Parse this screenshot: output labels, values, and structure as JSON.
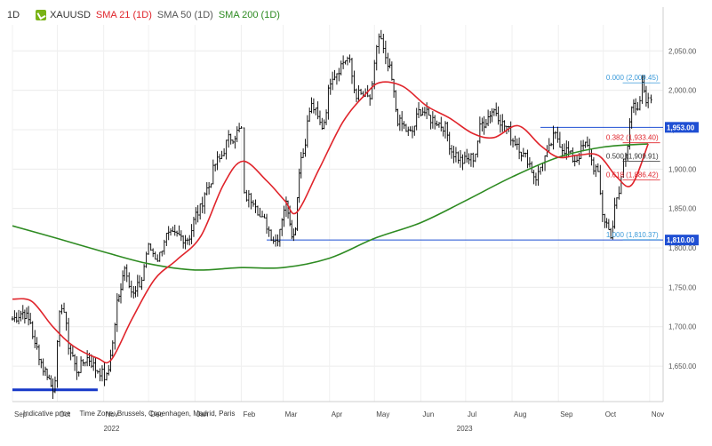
{
  "legend": {
    "timeframe": "1D",
    "symbol": "XAUUSD",
    "colors": {
      "symbol_badge": "#7ab317"
    },
    "indicators": [
      {
        "label": "SMA 21 (1D)",
        "color": "#e0242b"
      },
      {
        "label": "SMA 50 (1D)",
        "color": "#555555"
      },
      {
        "label": "SMA 200 (1D)",
        "color": "#2e8b22"
      }
    ]
  },
  "footer": {
    "indicative": "Indicative price",
    "timezone": "Time Zone: Brussels, Copenhagen, Madrid, Paris"
  },
  "chart_data": {
    "type": "line",
    "title": "",
    "xlabel": "",
    "ylabel": "",
    "x_range": [
      "2022-09-01",
      "2023-11-10"
    ],
    "ylim": [
      1605,
      2083
    ],
    "grid": true,
    "yticks": [
      "2,050.00",
      "2,000.00",
      "1,950.00",
      "1,900.00",
      "1,850.00",
      "1,800.00",
      "1,750.00",
      "1,700.00",
      "1,650.00"
    ],
    "ytick_values": [
      2050,
      2000,
      1950,
      1900,
      1850,
      1800,
      1750,
      1700,
      1650
    ],
    "xticks": [
      {
        "label": "Sep",
        "date": "2022-09-01"
      },
      {
        "label": "Oct",
        "date": "2022-10-01"
      },
      {
        "label": "Nov",
        "date": "2022-11-01"
      },
      {
        "label": "Dec",
        "date": "2022-12-01"
      },
      {
        "label": "Jan",
        "date": "2023-01-01"
      },
      {
        "label": "Feb",
        "date": "2023-02-01"
      },
      {
        "label": "Mar",
        "date": "2023-03-01"
      },
      {
        "label": "Apr",
        "date": "2023-04-01"
      },
      {
        "label": "May",
        "date": "2023-05-01"
      },
      {
        "label": "Jun",
        "date": "2023-06-01"
      },
      {
        "label": "Jul",
        "date": "2023-07-01"
      },
      {
        "label": "Aug",
        "date": "2023-08-01"
      },
      {
        "label": "Sep",
        "date": "2023-09-01"
      },
      {
        "label": "Oct",
        "date": "2023-10-01"
      },
      {
        "label": "Nov",
        "date": "2023-11-01"
      }
    ],
    "year_labels": [
      {
        "label": "2022",
        "date": "2022-11-01"
      },
      {
        "label": "2023",
        "date": "2023-06-25"
      }
    ],
    "series": [
      {
        "name": "XAUUSD",
        "style": "ohlc-bars",
        "color": "#000000",
        "points": [
          [
            "2022-09-01",
            1710
          ],
          [
            "2022-09-08",
            1718
          ],
          [
            "2022-09-13",
            1706
          ],
          [
            "2022-09-16",
            1675
          ],
          [
            "2022-09-23",
            1644
          ],
          [
            "2022-09-28",
            1622
          ],
          [
            "2022-10-04",
            1728
          ],
          [
            "2022-10-10",
            1668
          ],
          [
            "2022-10-14",
            1645
          ],
          [
            "2022-10-21",
            1660
          ],
          [
            "2022-10-28",
            1645
          ],
          [
            "2022-11-03",
            1635
          ],
          [
            "2022-11-07",
            1678
          ],
          [
            "2022-11-10",
            1730
          ],
          [
            "2022-11-15",
            1775
          ],
          [
            "2022-11-21",
            1740
          ],
          [
            "2022-11-25",
            1753
          ],
          [
            "2022-12-01",
            1800
          ],
          [
            "2022-12-07",
            1787
          ],
          [
            "2022-12-13",
            1815
          ],
          [
            "2022-12-20",
            1815
          ],
          [
            "2022-12-27",
            1812
          ],
          [
            "2023-01-03",
            1845
          ],
          [
            "2023-01-09",
            1875
          ],
          [
            "2023-01-16",
            1910
          ],
          [
            "2023-01-25",
            1940
          ],
          [
            "2023-02-01",
            1950
          ],
          [
            "2023-02-03",
            1865
          ],
          [
            "2023-02-09",
            1862
          ],
          [
            "2023-02-15",
            1835
          ],
          [
            "2023-02-24",
            1810
          ],
          [
            "2023-03-03",
            1855
          ],
          [
            "2023-03-08",
            1815
          ],
          [
            "2023-03-13",
            1915
          ],
          [
            "2023-03-20",
            1980
          ],
          [
            "2023-03-27",
            1955
          ],
          [
            "2023-04-03",
            2020
          ],
          [
            "2023-04-13",
            2040
          ],
          [
            "2023-04-19",
            1995
          ],
          [
            "2023-04-28",
            1990
          ],
          [
            "2023-05-04",
            2068
          ],
          [
            "2023-05-10",
            2030
          ],
          [
            "2023-05-18",
            1958
          ],
          [
            "2023-05-25",
            1945
          ],
          [
            "2023-06-01",
            1975
          ],
          [
            "2023-06-09",
            1963
          ],
          [
            "2023-06-16",
            1955
          ],
          [
            "2023-06-23",
            1920
          ],
          [
            "2023-06-29",
            1910
          ],
          [
            "2023-07-06",
            1915
          ],
          [
            "2023-07-12",
            1958
          ],
          [
            "2023-07-20",
            1975
          ],
          [
            "2023-07-27",
            1955
          ],
          [
            "2023-08-03",
            1935
          ],
          [
            "2023-08-10",
            1915
          ],
          [
            "2023-08-17",
            1890
          ],
          [
            "2023-08-23",
            1915
          ],
          [
            "2023-08-30",
            1942
          ],
          [
            "2023-09-05",
            1925
          ],
          [
            "2023-09-12",
            1912
          ],
          [
            "2023-09-19",
            1930
          ],
          [
            "2023-09-26",
            1900
          ],
          [
            "2023-10-02",
            1835
          ],
          [
            "2023-10-06",
            1818
          ],
          [
            "2023-10-10",
            1860
          ],
          [
            "2023-10-16",
            1920
          ],
          [
            "2023-10-20",
            1980
          ],
          [
            "2023-10-24",
            1970
          ],
          [
            "2023-10-27",
            2005
          ],
          [
            "2023-10-31",
            1985
          ],
          [
            "2023-11-02",
            1988
          ]
        ]
      },
      {
        "name": "SMA 21 (1D)",
        "color": "#e0242b",
        "points": [
          [
            "2022-09-01",
            1735
          ],
          [
            "2022-09-14",
            1732
          ],
          [
            "2022-09-28",
            1700
          ],
          [
            "2022-10-12",
            1675
          ],
          [
            "2022-10-28",
            1660
          ],
          [
            "2022-11-06",
            1658
          ],
          [
            "2022-11-20",
            1710
          ],
          [
            "2022-12-05",
            1760
          ],
          [
            "2022-12-20",
            1785
          ],
          [
            "2023-01-05",
            1815
          ],
          [
            "2023-01-20",
            1880
          ],
          [
            "2023-02-02",
            1910
          ],
          [
            "2023-02-18",
            1885
          ],
          [
            "2023-03-02",
            1860
          ],
          [
            "2023-03-10",
            1845
          ],
          [
            "2023-03-25",
            1900
          ],
          [
            "2023-04-10",
            1960
          ],
          [
            "2023-04-25",
            1995
          ],
          [
            "2023-05-05",
            2010
          ],
          [
            "2023-05-20",
            2005
          ],
          [
            "2023-06-05",
            1980
          ],
          [
            "2023-06-20",
            1965
          ],
          [
            "2023-07-06",
            1945
          ],
          [
            "2023-07-20",
            1940
          ],
          [
            "2023-08-05",
            1955
          ],
          [
            "2023-08-20",
            1930
          ],
          [
            "2023-09-01",
            1915
          ],
          [
            "2023-09-15",
            1918
          ],
          [
            "2023-09-28",
            1917
          ],
          [
            "2023-10-10",
            1890
          ],
          [
            "2023-10-20",
            1880
          ],
          [
            "2023-10-31",
            1932
          ]
        ]
      },
      {
        "name": "SMA 200 (1D)",
        "color": "#2e8b22",
        "points": [
          [
            "2022-09-01",
            1828
          ],
          [
            "2022-10-01",
            1812
          ],
          [
            "2022-11-01",
            1795
          ],
          [
            "2022-12-01",
            1780
          ],
          [
            "2023-01-01",
            1772
          ],
          [
            "2023-02-01",
            1775
          ],
          [
            "2023-03-01",
            1775
          ],
          [
            "2023-04-01",
            1787
          ],
          [
            "2023-05-01",
            1812
          ],
          [
            "2023-06-01",
            1832
          ],
          [
            "2023-07-01",
            1860
          ],
          [
            "2023-08-01",
            1890
          ],
          [
            "2023-09-01",
            1915
          ],
          [
            "2023-10-01",
            1928
          ],
          [
            "2023-10-31",
            1932
          ]
        ]
      }
    ],
    "horizontal_lines": [
      {
        "value": 1953,
        "label": "1,953.00",
        "color": "#1f4fd3",
        "from": "2023-08-20"
      },
      {
        "value": 1810,
        "label": "1,810.00",
        "color": "#1f4fd3",
        "from": "2023-02-18"
      }
    ],
    "support_segment": {
      "value": 1620,
      "from": "2022-09-01",
      "to": "2022-10-28",
      "color": "#1638c8"
    },
    "fibonacci": {
      "from": "2023-10-14",
      "to": "2023-11-08",
      "levels": [
        {
          "ratio": 0,
          "price": 2009.45,
          "label": "0.000 (2,009.45)",
          "color": "#3a9ad9"
        },
        {
          "ratio": 0.382,
          "price": 1933.4,
          "label": "0.382 (1,933.40)",
          "color": "#e0242b"
        },
        {
          "ratio": 0.5,
          "price": 1909.91,
          "label": "0.500 (1,909.91)",
          "color": "#333333"
        },
        {
          "ratio": 0.618,
          "price": 1886.42,
          "label": "0.618 (1,886.42)",
          "color": "#e0242b"
        },
        {
          "ratio": 1,
          "price": 1810.37,
          "label": "1.000 (1,810.37)",
          "color": "#3a9ad9"
        }
      ]
    }
  }
}
